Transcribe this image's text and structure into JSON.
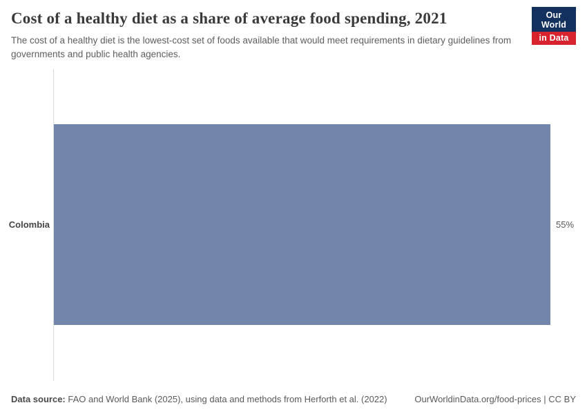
{
  "header": {
    "title": "Cost of a healthy diet as a share of average food spending, 2021",
    "subtitle": "The cost of a healthy diet is the lowest-cost set of foods available that would meet requirements in dietary guidelines from governments and public health agencies.",
    "logo": {
      "line1": "Our World",
      "line2": "in Data",
      "navy": "#12315e",
      "red": "#d8232e"
    }
  },
  "chart_data": {
    "type": "bar",
    "orientation": "horizontal",
    "title": "Cost of a healthy diet as a share of average food spending, 2021",
    "subtitle": "The cost of a healthy diet is the lowest-cost set of foods available that would meet requirements in dietary guidelines from governments and public health agencies.",
    "categories": [
      "Colombia"
    ],
    "values": [
      55
    ],
    "value_labels": [
      "55%"
    ],
    "unit": "%",
    "xlim": [
      0,
      55
    ],
    "bar_color": "#7286ac",
    "grid": false,
    "legend": "none"
  },
  "footer": {
    "source_label": "Data source:",
    "source_text": " FAO and World Bank (2025), using data and methods from Herforth et al. (2022)",
    "right_text": "OurWorldinData.org/food-prices | CC BY"
  }
}
